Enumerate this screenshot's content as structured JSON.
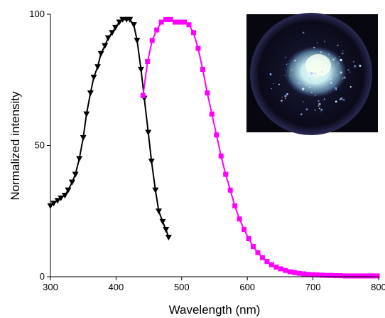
{
  "chart_data": {
    "type": "line",
    "title": "",
    "xlabel": "Wavelength (nm)",
    "ylabel": "Normalized intensity",
    "xlim": [
      300,
      800
    ],
    "ylim": [
      0,
      100
    ],
    "xticks": [
      "300",
      "400",
      "500",
      "600",
      "700",
      "800"
    ],
    "yticks": [
      "0",
      "50",
      "100"
    ],
    "grid": false,
    "legend": "none",
    "inset": "photo of a blue-white luminescent powder in a dish under UV light",
    "series": [
      {
        "marker": "triangle-down",
        "color": "#000000",
        "x": [
          300,
          305,
          311,
          316,
          322,
          327,
          333,
          338,
          344,
          350,
          355,
          361,
          366,
          372,
          377,
          383,
          388,
          394,
          399,
          405,
          410,
          416,
          421,
          427,
          432,
          438,
          443,
          449,
          454,
          460,
          465,
          471,
          476,
          480
        ],
        "y": [
          27,
          28,
          29,
          30,
          31,
          33,
          36,
          39,
          45,
          53,
          62,
          70,
          76,
          80,
          85,
          88,
          91,
          93,
          95,
          97,
          98,
          98,
          98,
          96,
          90,
          79,
          68,
          55,
          44,
          33,
          25,
          21,
          18,
          15
        ]
      },
      {
        "marker": "square",
        "color": "#ff00ff",
        "x": [
          441,
          448,
          455,
          462,
          469,
          476,
          483,
          490,
          497,
          504,
          511,
          518,
          525,
          532,
          539,
          546,
          553,
          560,
          567,
          574,
          581,
          588,
          595,
          602,
          609,
          616,
          623,
          630,
          637,
          644,
          651,
          658,
          665,
          672,
          679,
          686,
          693,
          700,
          707,
          714,
          721,
          728,
          735,
          742,
          749,
          756,
          763,
          770,
          777,
          784,
          791,
          798
        ],
        "y": [
          69,
          82,
          90,
          94,
          97,
          98,
          98,
          97,
          97,
          97,
          96,
          93,
          87,
          79,
          70,
          62,
          54,
          46,
          39,
          33,
          27,
          22,
          18,
          14.5,
          11.5,
          9.2,
          7.3,
          5.8,
          4.6,
          3.7,
          3.0,
          2.4,
          1.9,
          1.6,
          1.3,
          1.1,
          0.9,
          0.8,
          0.7,
          0.6,
          0.5,
          0.5,
          0.4,
          0.4,
          0.3,
          0.3,
          0.3,
          0.3,
          0.3,
          0.3,
          0.3,
          0.3
        ]
      }
    ]
  }
}
